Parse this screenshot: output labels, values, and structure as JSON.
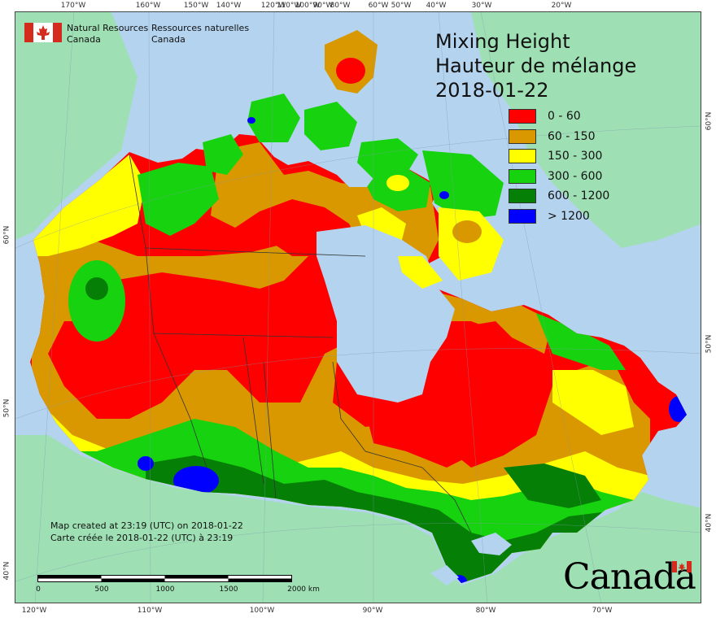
{
  "title": {
    "line1": "Mixing Height",
    "line2": "Hauteur de mélange",
    "date": "2018-01-22"
  },
  "agency": {
    "en_line1": "Natural Resources",
    "en_line2": "Canada",
    "fr_line1": "Ressources naturelles",
    "fr_line2": "Canada"
  },
  "legend": [
    {
      "label": "0 - 60",
      "color": "#ff0000"
    },
    {
      "label": "60 - 150",
      "color": "#d99800"
    },
    {
      "label": "150 - 300",
      "color": "#ffff00"
    },
    {
      "label": "300 - 600",
      "color": "#17d30f"
    },
    {
      "label": "600 - 1200",
      "color": "#057f05"
    },
    {
      "label": "> 1200",
      "color": "#0000ff"
    }
  ],
  "credit": {
    "en": "Map created at 23:19 (UTC) on 2018-01-22",
    "fr": "Carte créée le 2018-01-22 (UTC) à 23:19"
  },
  "scale_bar": {
    "labels": [
      "0",
      "500",
      "1000",
      "1500",
      "2000  km"
    ]
  },
  "longitude_top": [
    "170°W",
    "160°W",
    "150°W",
    "140°W",
    "120°W",
    "110°W",
    "100°W",
    "90°W",
    "80°W",
    "60°W",
    "50°W",
    "40°W",
    "30°W",
    "20°W"
  ],
  "longitude_bottom": [
    "120°W",
    "110°W",
    "100°W",
    "90°W",
    "80°W",
    "70°W"
  ],
  "latitude_left": [
    "60°N",
    "50°N",
    "40°N"
  ],
  "latitude_right": [
    "60°N",
    "50°N",
    "40°N"
  ],
  "wordmark": "Canada",
  "colors": {
    "ocean": "#b4d3ef",
    "land_outside": "#9ee0b4"
  }
}
